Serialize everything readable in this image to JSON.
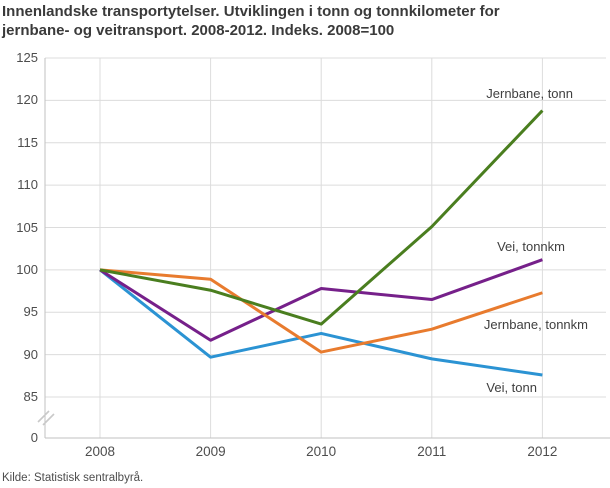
{
  "header": {
    "title_line1": "Innenlandske transportytelser. Utviklingen i tonn og tonnkilometer for",
    "title_line2": "jernbane- og veitransport. 2008-2012. Indeks. 2008=100"
  },
  "chart_data": {
    "type": "line",
    "title": "Innenlandske transportytelser. Utviklingen i tonn og tonnkilometer for jernbane- og veitransport. 2008-2012. Indeks. 2008=100",
    "x": [
      2008,
      2009,
      2010,
      2011,
      2012
    ],
    "series": [
      {
        "name": "Jernbane, tonn",
        "color": "#4a7e1f",
        "values": [
          100,
          97.6,
          93.6,
          105.1,
          118.8
        ]
      },
      {
        "name": "Vei, tonnkm",
        "color": "#76208a",
        "values": [
          100,
          91.7,
          97.8,
          96.5,
          101.2
        ]
      },
      {
        "name": "Jernbane, tonnkm",
        "color": "#e87b2e",
        "values": [
          100,
          98.9,
          90.3,
          93.0,
          97.3
        ]
      },
      {
        "name": "Vei, tonn",
        "color": "#2b93d3",
        "values": [
          100,
          89.7,
          92.5,
          89.5,
          87.6
        ]
      }
    ],
    "yticks": [
      "125",
      "120",
      "115",
      "110",
      "105",
      "100",
      "95",
      "90",
      "85"
    ],
    "baseline_tick": "0",
    "axis_break": true,
    "ylim_display": [
      85,
      125
    ],
    "grid": true,
    "legend_position": "inline-labels",
    "colors": {
      "gridline": "#dcdcdc",
      "axis": "#c2c2c2",
      "tick_text": "#4d4d4d",
      "title_text": "#3a3a3a"
    },
    "source": "Kilde: Statistisk sentralbyrå."
  }
}
